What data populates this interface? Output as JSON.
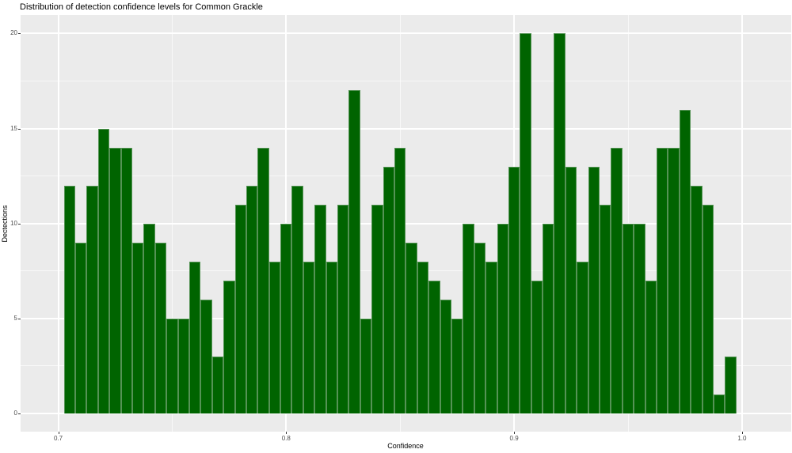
{
  "title": "Distribution of detection confidence levels for Common Grackle",
  "chart_data": {
    "type": "bar",
    "subtype": "histogram",
    "title": "Distribution of detection confidence levels for Common Grackle",
    "xlabel": "Confidence",
    "ylabel": "Dectections",
    "bin_start": 0.7025,
    "bin_width": 0.005,
    "values": [
      12,
      9,
      12,
      15,
      14,
      14,
      9,
      10,
      9,
      5,
      5,
      8,
      6,
      3,
      7,
      11,
      12,
      14,
      8,
      10,
      12,
      8,
      11,
      8,
      11,
      17,
      5,
      11,
      13,
      14,
      9,
      8,
      7,
      6,
      5,
      10,
      9,
      8,
      10,
      13,
      20,
      7,
      10,
      20,
      13,
      8,
      13,
      11,
      14,
      10,
      10,
      7,
      14,
      14,
      16,
      12,
      11,
      1,
      3
    ],
    "x_ticks": [
      0.7,
      0.8,
      0.9,
      1.0
    ],
    "x_tick_labels": [
      "0.7",
      "0.8",
      "0.9",
      "1.0"
    ],
    "x_minor_ticks": [
      0.75,
      0.85,
      0.95
    ],
    "y_ticks": [
      0,
      5,
      10,
      15,
      20
    ],
    "y_tick_labels": [
      "0",
      "5",
      "10",
      "15",
      "20"
    ],
    "y_minor_ticks": [
      2.5,
      7.5,
      12.5,
      17.5
    ],
    "xlim": [
      0.6835,
      1.0215
    ],
    "ylim": [
      -1,
      21
    ],
    "grid": true,
    "legend": false,
    "bar_color": "#006400",
    "bar_edge_color": "#559355",
    "panel_color": "#EBEBEB",
    "gridline_color": "#FFFFFF",
    "tick_label_color": "#4d4d4d"
  }
}
